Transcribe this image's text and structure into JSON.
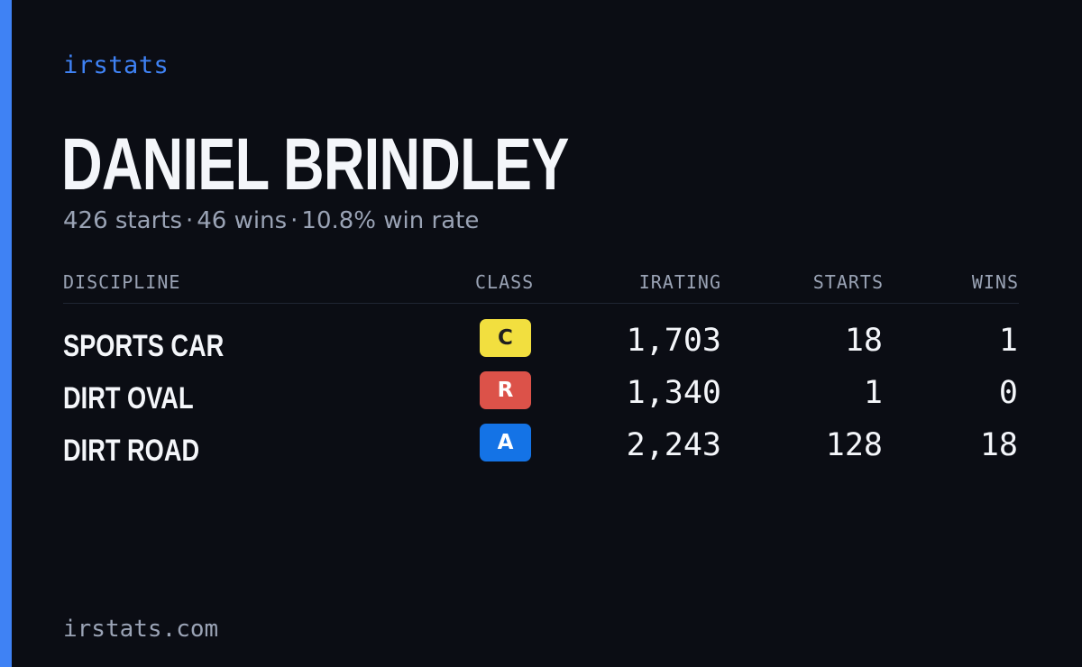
{
  "brand": "irstats",
  "driver": {
    "name": "DANIEL BRINDLEY",
    "starts": "426 starts",
    "wins": "46 wins",
    "win_rate": "10.8% win rate",
    "separator": "·"
  },
  "table": {
    "headers": {
      "discipline": "DISCIPLINE",
      "class": "CLASS",
      "irating": "IRATING",
      "starts": "STARTS",
      "wins": "WINS"
    },
    "rows": [
      {
        "discipline": "SPORTS CAR",
        "class": "C",
        "class_bg": "#f2df3f",
        "class_fg": "#1f1f1f",
        "irating": "1,703",
        "starts": "18",
        "wins": "1"
      },
      {
        "discipline": "DIRT OVAL",
        "class": "R",
        "class_bg": "#dc5249",
        "class_fg": "#ffffff",
        "irating": "1,340",
        "starts": "1",
        "wins": "0"
      },
      {
        "discipline": "DIRT ROAD",
        "class": "A",
        "class_bg": "#1473e6",
        "class_fg": "#ffffff",
        "irating": "2,243",
        "starts": "128",
        "wins": "18"
      }
    ]
  },
  "footer": {
    "domain": "irstats.com"
  },
  "colors": {
    "background": "#0b0d14",
    "accent": "#3f82f4",
    "muted_text": "#9aa3b5",
    "primary_text": "#f4f6fa"
  }
}
